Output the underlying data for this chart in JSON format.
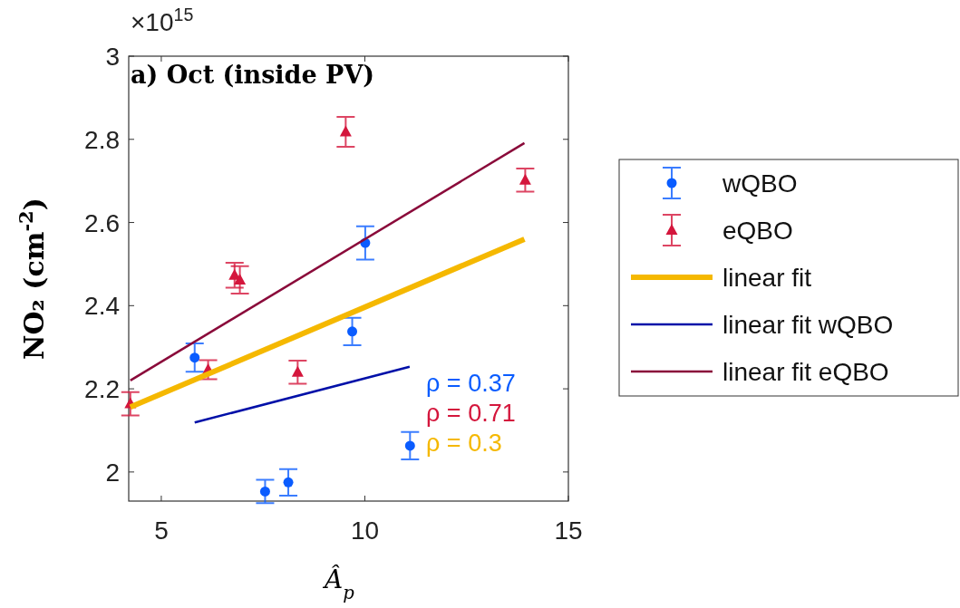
{
  "chart_data": {
    "type": "scatter",
    "title": "a) Oct (inside PV)",
    "xlabel": "Â$_{p}$",
    "ylabel": "NO₂ (cm$^{-2}$)",
    "xlim": [
      4.2,
      15
    ],
    "xticks": [
      5,
      10,
      15
    ],
    "ylim": [
      1.93,
      3
    ],
    "yticks": [
      2,
      2.2,
      2.4,
      2.6,
      2.8,
      3
    ],
    "grid": false,
    "legend": "right",
    "annotations": [
      "×10$^{15}$",
      "ρ = 0.37",
      "ρ = 0.71",
      "ρ = 0.3"
    ],
    "series": [
      {
        "name": "wQBO",
        "marker": "circle",
        "color": "#0a5cff",
        "x": [
          5.82,
          10.01,
          9.69,
          11.11,
          7.55,
          8.12
        ],
        "values": [
          2.275,
          2.551,
          2.338,
          2.063,
          1.953,
          1.975
        ],
        "errors": [
          0.034,
          0.04,
          0.033,
          0.033,
          0.028,
          0.032
        ]
      },
      {
        "name": "eQBO",
        "marker": "triangle",
        "color": "#d4163c",
        "x": [
          9.53,
          13.94,
          6.8,
          6.93,
          6.15,
          8.35,
          4.24
        ],
        "values": [
          2.818,
          2.702,
          2.473,
          2.462,
          2.246,
          2.24,
          2.164
        ],
        "errors": [
          0.036,
          0.028,
          0.03,
          0.033,
          0.023,
          0.028,
          0.028
        ]
      },
      {
        "name": "linear fit",
        "type": "line",
        "color": "#f5b800",
        "x": [
          4.24,
          13.92
        ],
        "values": [
          2.156,
          2.56
        ]
      },
      {
        "name": "linear fit wQBO",
        "type": "line",
        "color": "#0010a8",
        "x": [
          5.82,
          11.1
        ],
        "values": [
          2.119,
          2.253
        ]
      },
      {
        "name": "linear fit eQBO",
        "type": "line",
        "color": "#8a0a3a",
        "x": [
          4.24,
          13.92
        ],
        "values": [
          2.22,
          2.791
        ]
      }
    ]
  }
}
